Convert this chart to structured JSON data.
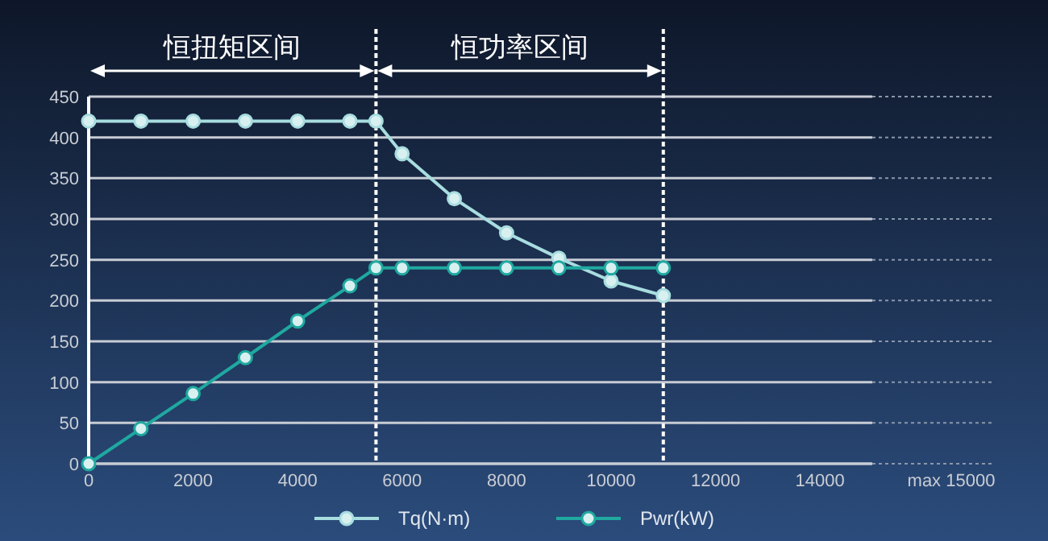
{
  "chart_data": {
    "type": "line",
    "marker": "circle",
    "legend": "bottom",
    "grid": "y",
    "xlim": [
      0,
      15000
    ],
    "ylim": [
      0,
      450
    ],
    "xticks": [
      0,
      2000,
      4000,
      6000,
      8000,
      10000,
      12000,
      14000
    ],
    "annotations": [
      "恒扭矩区间",
      "恒功率区间",
      "max 15000"
    ],
    "yticks": [
      0,
      50,
      100,
      150,
      200,
      250,
      300,
      350,
      400,
      450
    ],
    "x": [
      0,
      1000,
      2000,
      3000,
      4000,
      5000,
      5500,
      6000,
      7000,
      8000,
      9000,
      10000,
      11000
    ],
    "series": [
      {
        "name": "Tq(N·m)",
        "color": "#a8dde0",
        "values": [
          420,
          420,
          420,
          420,
          420,
          420,
          420,
          380,
          325,
          283,
          252,
          224,
          206
        ]
      },
      {
        "name": "Pwr(kW)",
        "color": "#1fa9a0",
        "values": [
          0,
          43,
          86,
          130,
          175,
          218,
          240,
          240,
          240,
          240,
          240,
          240,
          240
        ]
      }
    ],
    "ref_lines": [
      {
        "axis": "x",
        "value": 5500,
        "line_style": "dotted",
        "color": "#ffffff"
      },
      {
        "axis": "x",
        "value": 11000,
        "line_style": "dotted",
        "color": "#ffffff"
      }
    ]
  }
}
